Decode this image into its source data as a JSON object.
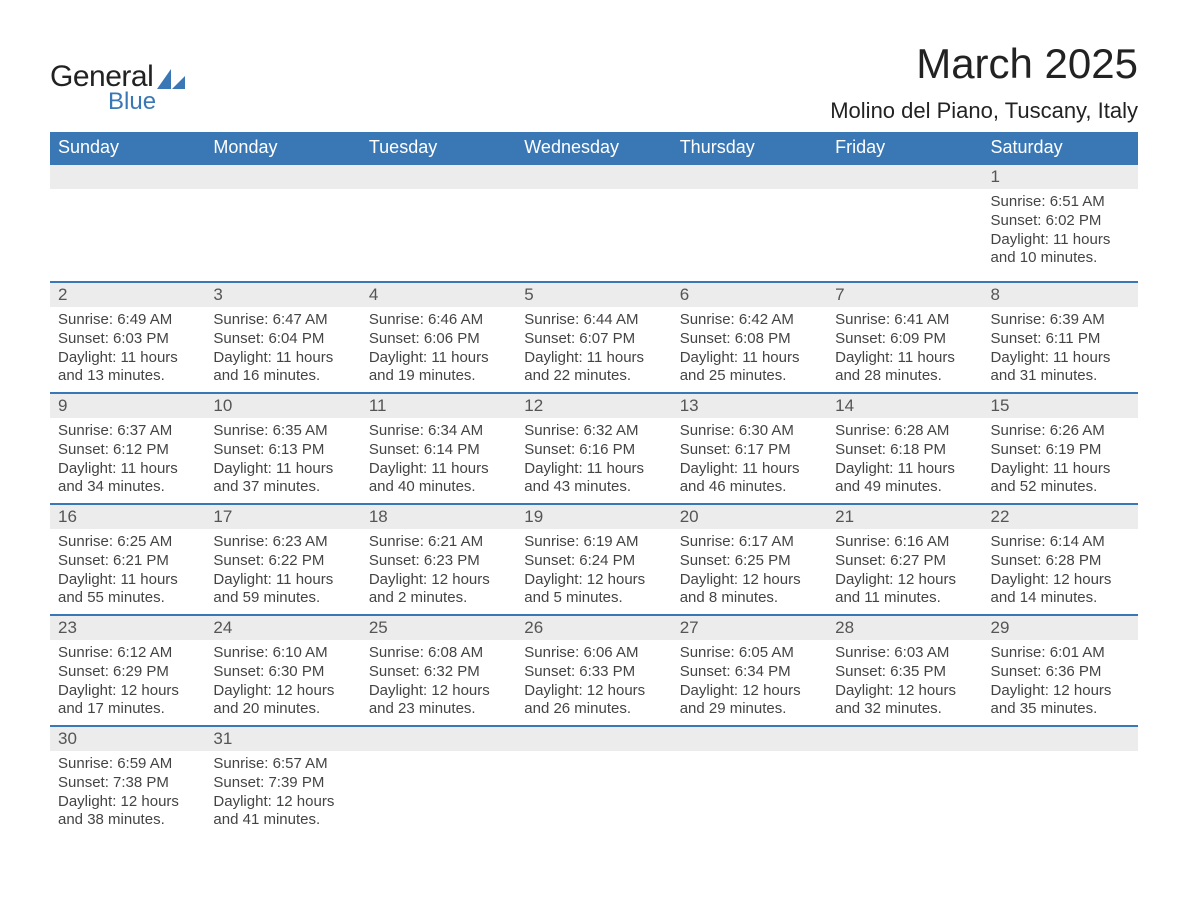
{
  "logo": {
    "text1": "General",
    "text2": "Blue",
    "shape_color": "#3a78b5"
  },
  "title": "March 2025",
  "location": "Molino del Piano, Tuscany, Italy",
  "colors": {
    "header_bg": "#3a78b5",
    "header_fg": "#ffffff",
    "row_divider": "#3a78b5",
    "strip_bg": "#ececec",
    "text": "#444444",
    "page_bg": "#ffffff",
    "title_fontsize": 42,
    "location_fontsize": 22,
    "header_fontsize": 18,
    "body_fontsize": 15
  },
  "day_headers": [
    "Sunday",
    "Monday",
    "Tuesday",
    "Wednesday",
    "Thursday",
    "Friday",
    "Saturday"
  ],
  "weeks": [
    [
      null,
      null,
      null,
      null,
      null,
      null,
      {
        "n": "1",
        "sunrise": "Sunrise: 6:51 AM",
        "sunset": "Sunset: 6:02 PM",
        "dl1": "Daylight: 11 hours",
        "dl2": "and 10 minutes."
      }
    ],
    [
      {
        "n": "2",
        "sunrise": "Sunrise: 6:49 AM",
        "sunset": "Sunset: 6:03 PM",
        "dl1": "Daylight: 11 hours",
        "dl2": "and 13 minutes."
      },
      {
        "n": "3",
        "sunrise": "Sunrise: 6:47 AM",
        "sunset": "Sunset: 6:04 PM",
        "dl1": "Daylight: 11 hours",
        "dl2": "and 16 minutes."
      },
      {
        "n": "4",
        "sunrise": "Sunrise: 6:46 AM",
        "sunset": "Sunset: 6:06 PM",
        "dl1": "Daylight: 11 hours",
        "dl2": "and 19 minutes."
      },
      {
        "n": "5",
        "sunrise": "Sunrise: 6:44 AM",
        "sunset": "Sunset: 6:07 PM",
        "dl1": "Daylight: 11 hours",
        "dl2": "and 22 minutes."
      },
      {
        "n": "6",
        "sunrise": "Sunrise: 6:42 AM",
        "sunset": "Sunset: 6:08 PM",
        "dl1": "Daylight: 11 hours",
        "dl2": "and 25 minutes."
      },
      {
        "n": "7",
        "sunrise": "Sunrise: 6:41 AM",
        "sunset": "Sunset: 6:09 PM",
        "dl1": "Daylight: 11 hours",
        "dl2": "and 28 minutes."
      },
      {
        "n": "8",
        "sunrise": "Sunrise: 6:39 AM",
        "sunset": "Sunset: 6:11 PM",
        "dl1": "Daylight: 11 hours",
        "dl2": "and 31 minutes."
      }
    ],
    [
      {
        "n": "9",
        "sunrise": "Sunrise: 6:37 AM",
        "sunset": "Sunset: 6:12 PM",
        "dl1": "Daylight: 11 hours",
        "dl2": "and 34 minutes."
      },
      {
        "n": "10",
        "sunrise": "Sunrise: 6:35 AM",
        "sunset": "Sunset: 6:13 PM",
        "dl1": "Daylight: 11 hours",
        "dl2": "and 37 minutes."
      },
      {
        "n": "11",
        "sunrise": "Sunrise: 6:34 AM",
        "sunset": "Sunset: 6:14 PM",
        "dl1": "Daylight: 11 hours",
        "dl2": "and 40 minutes."
      },
      {
        "n": "12",
        "sunrise": "Sunrise: 6:32 AM",
        "sunset": "Sunset: 6:16 PM",
        "dl1": "Daylight: 11 hours",
        "dl2": "and 43 minutes."
      },
      {
        "n": "13",
        "sunrise": "Sunrise: 6:30 AM",
        "sunset": "Sunset: 6:17 PM",
        "dl1": "Daylight: 11 hours",
        "dl2": "and 46 minutes."
      },
      {
        "n": "14",
        "sunrise": "Sunrise: 6:28 AM",
        "sunset": "Sunset: 6:18 PM",
        "dl1": "Daylight: 11 hours",
        "dl2": "and 49 minutes."
      },
      {
        "n": "15",
        "sunrise": "Sunrise: 6:26 AM",
        "sunset": "Sunset: 6:19 PM",
        "dl1": "Daylight: 11 hours",
        "dl2": "and 52 minutes."
      }
    ],
    [
      {
        "n": "16",
        "sunrise": "Sunrise: 6:25 AM",
        "sunset": "Sunset: 6:21 PM",
        "dl1": "Daylight: 11 hours",
        "dl2": "and 55 minutes."
      },
      {
        "n": "17",
        "sunrise": "Sunrise: 6:23 AM",
        "sunset": "Sunset: 6:22 PM",
        "dl1": "Daylight: 11 hours",
        "dl2": "and 59 minutes."
      },
      {
        "n": "18",
        "sunrise": "Sunrise: 6:21 AM",
        "sunset": "Sunset: 6:23 PM",
        "dl1": "Daylight: 12 hours",
        "dl2": "and 2 minutes."
      },
      {
        "n": "19",
        "sunrise": "Sunrise: 6:19 AM",
        "sunset": "Sunset: 6:24 PM",
        "dl1": "Daylight: 12 hours",
        "dl2": "and 5 minutes."
      },
      {
        "n": "20",
        "sunrise": "Sunrise: 6:17 AM",
        "sunset": "Sunset: 6:25 PM",
        "dl1": "Daylight: 12 hours",
        "dl2": "and 8 minutes."
      },
      {
        "n": "21",
        "sunrise": "Sunrise: 6:16 AM",
        "sunset": "Sunset: 6:27 PM",
        "dl1": "Daylight: 12 hours",
        "dl2": "and 11 minutes."
      },
      {
        "n": "22",
        "sunrise": "Sunrise: 6:14 AM",
        "sunset": "Sunset: 6:28 PM",
        "dl1": "Daylight: 12 hours",
        "dl2": "and 14 minutes."
      }
    ],
    [
      {
        "n": "23",
        "sunrise": "Sunrise: 6:12 AM",
        "sunset": "Sunset: 6:29 PM",
        "dl1": "Daylight: 12 hours",
        "dl2": "and 17 minutes."
      },
      {
        "n": "24",
        "sunrise": "Sunrise: 6:10 AM",
        "sunset": "Sunset: 6:30 PM",
        "dl1": "Daylight: 12 hours",
        "dl2": "and 20 minutes."
      },
      {
        "n": "25",
        "sunrise": "Sunrise: 6:08 AM",
        "sunset": "Sunset: 6:32 PM",
        "dl1": "Daylight: 12 hours",
        "dl2": "and 23 minutes."
      },
      {
        "n": "26",
        "sunrise": "Sunrise: 6:06 AM",
        "sunset": "Sunset: 6:33 PM",
        "dl1": "Daylight: 12 hours",
        "dl2": "and 26 minutes."
      },
      {
        "n": "27",
        "sunrise": "Sunrise: 6:05 AM",
        "sunset": "Sunset: 6:34 PM",
        "dl1": "Daylight: 12 hours",
        "dl2": "and 29 minutes."
      },
      {
        "n": "28",
        "sunrise": "Sunrise: 6:03 AM",
        "sunset": "Sunset: 6:35 PM",
        "dl1": "Daylight: 12 hours",
        "dl2": "and 32 minutes."
      },
      {
        "n": "29",
        "sunrise": "Sunrise: 6:01 AM",
        "sunset": "Sunset: 6:36 PM",
        "dl1": "Daylight: 12 hours",
        "dl2": "and 35 minutes."
      }
    ],
    [
      {
        "n": "30",
        "sunrise": "Sunrise: 6:59 AM",
        "sunset": "Sunset: 7:38 PM",
        "dl1": "Daylight: 12 hours",
        "dl2": "and 38 minutes."
      },
      {
        "n": "31",
        "sunrise": "Sunrise: 6:57 AM",
        "sunset": "Sunset: 7:39 PM",
        "dl1": "Daylight: 12 hours",
        "dl2": "and 41 minutes."
      },
      null,
      null,
      null,
      null,
      null
    ]
  ]
}
